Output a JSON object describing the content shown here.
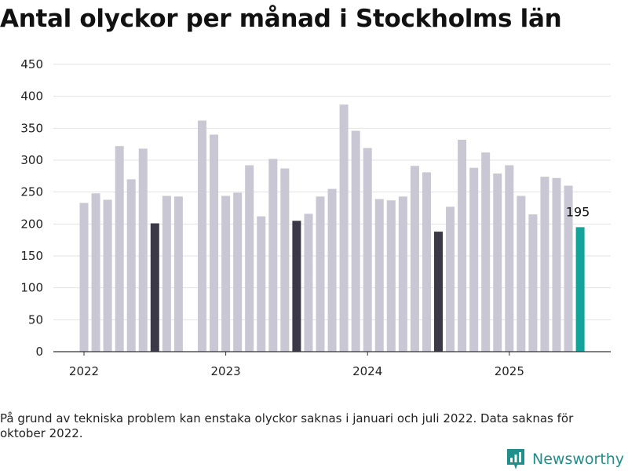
{
  "title": "Antal olyckor per månad i Stockholms län",
  "footnote": "På grund av tekniska problem kan enstaka olyckor saknas i januari och juli 2022. Data saknas för oktober 2022.",
  "brand": {
    "name": "Newsworthy",
    "icon": "newsworthy-logo-icon"
  },
  "colors": {
    "default": "#c8c7d3",
    "july": "#3b3847",
    "latest": "#13a39a",
    "grid": "#e3e3e3",
    "axis": "#333333"
  },
  "chart_data": {
    "type": "bar",
    "title": "Antal olyckor per månad i Stockholms län",
    "xlabel": "",
    "ylabel": "",
    "ylim": [
      0,
      450
    ],
    "yticks": [
      0,
      50,
      100,
      150,
      200,
      250,
      300,
      350,
      400,
      450
    ],
    "xticks": [
      "2022",
      "2023",
      "2024",
      "2025"
    ],
    "grid": true,
    "data_labels": [
      {
        "month": "2025-07",
        "label": "195"
      }
    ],
    "x": [
      "2022-01",
      "2022-02",
      "2022-03",
      "2022-04",
      "2022-05",
      "2022-06",
      "2022-07",
      "2022-08",
      "2022-09",
      "2022-10",
      "2022-11",
      "2022-12",
      "2023-01",
      "2023-02",
      "2023-03",
      "2023-04",
      "2023-05",
      "2023-06",
      "2023-07",
      "2023-08",
      "2023-09",
      "2023-10",
      "2023-11",
      "2023-12",
      "2024-01",
      "2024-02",
      "2024-03",
      "2024-04",
      "2024-05",
      "2024-06",
      "2024-07",
      "2024-08",
      "2024-09",
      "2024-10",
      "2024-11",
      "2024-12",
      "2025-01",
      "2025-02",
      "2025-03",
      "2025-04",
      "2025-05",
      "2025-06",
      "2025-07"
    ],
    "values": [
      233,
      248,
      238,
      322,
      270,
      318,
      201,
      244,
      243,
      null,
      362,
      340,
      244,
      249,
      292,
      212,
      302,
      287,
      205,
      216,
      243,
      255,
      387,
      346,
      319,
      239,
      237,
      243,
      291,
      281,
      188,
      227,
      332,
      288,
      312,
      279,
      292,
      244,
      215,
      274,
      272,
      260,
      195
    ]
  }
}
